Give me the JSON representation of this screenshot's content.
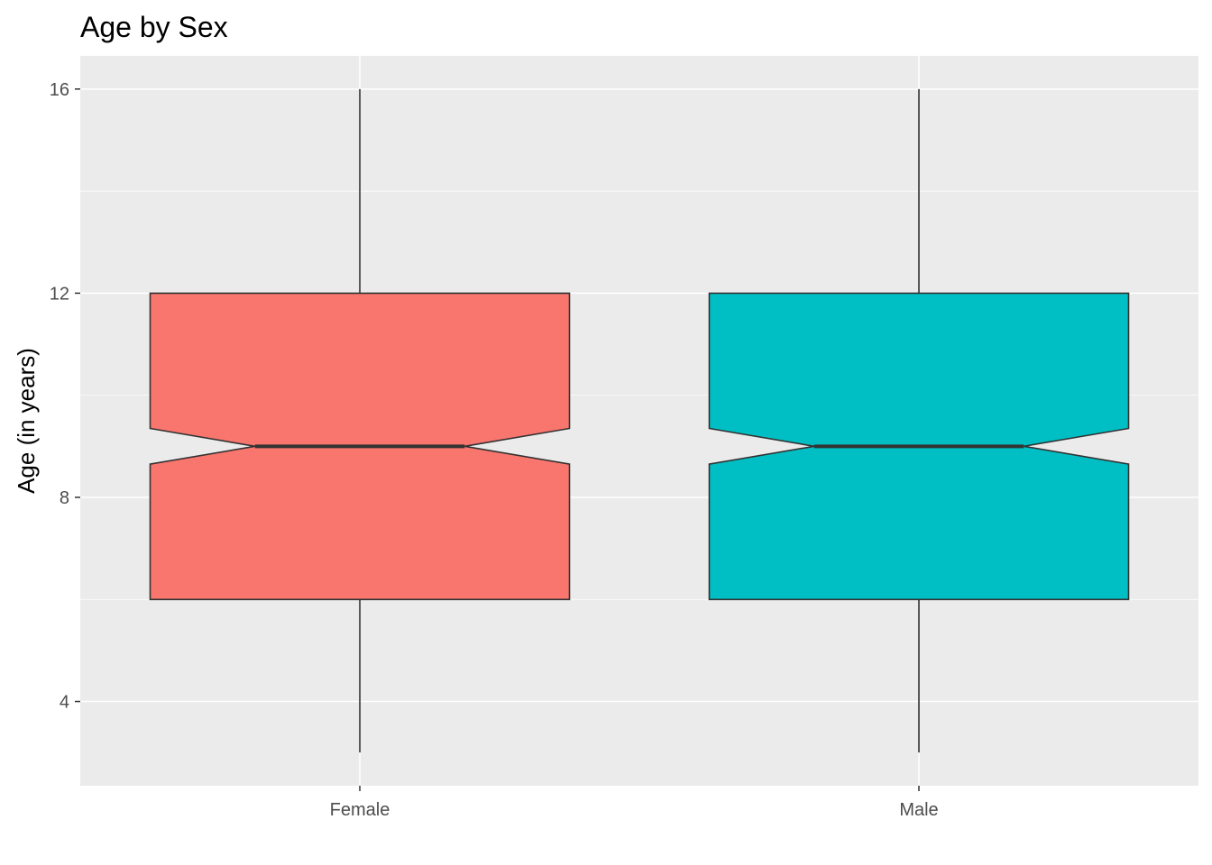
{
  "chart_data": {
    "type": "boxplot",
    "title": "Age by Sex",
    "xlabel": "",
    "ylabel": "Age (in years)",
    "ylim": [
      2.35,
      16.65
    ],
    "y_ticks": [
      4,
      8,
      12,
      16
    ],
    "y_tick_labels": [
      "4",
      "8",
      "12",
      "16"
    ],
    "notched": true,
    "grid": true,
    "legend": "none",
    "categories": [
      "Female",
      "Male"
    ],
    "boxes": [
      {
        "category": "Female",
        "whisker_low": 3,
        "q1": 6,
        "median": 9,
        "q3": 12,
        "whisker_high": 16,
        "notch_low": 8.65,
        "notch_high": 9.35,
        "fill": "#F8766D"
      },
      {
        "category": "Male",
        "whisker_low": 3,
        "q1": 6,
        "median": 9,
        "q3": 12,
        "whisker_high": 16,
        "notch_low": 8.65,
        "notch_high": 9.35,
        "fill": "#00BFC4"
      }
    ],
    "colors": {
      "panel": "#EBEBEB",
      "grid": "#FFFFFF",
      "outline": "#333333"
    }
  }
}
